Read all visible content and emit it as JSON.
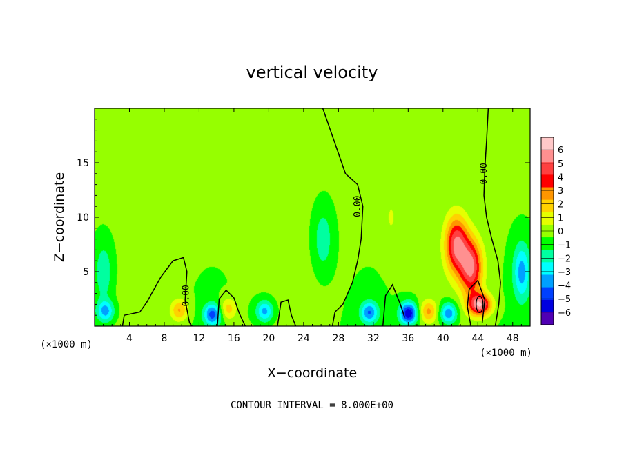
{
  "chart_data": {
    "type": "heatmap",
    "title": "vertical velocity",
    "xlabel": "X−coordinate",
    "ylabel": "Z−coordinate",
    "x_unit": "(×1000 m)",
    "xlim": [
      0,
      50
    ],
    "ylim": [
      0,
      20
    ],
    "x_ticks": [
      4,
      8,
      12,
      16,
      20,
      24,
      28,
      32,
      36,
      40,
      44,
      48
    ],
    "y_ticks": [
      5,
      10,
      15
    ],
    "colorbar": {
      "levels": [
        6,
        5,
        4,
        3,
        2,
        1,
        0,
        -1,
        -2,
        -3,
        -4,
        -5,
        -6
      ],
      "labels": [
        "6",
        "5",
        "4",
        "3",
        "2",
        "1",
        "0",
        "−1",
        "−2",
        "−3",
        "−4",
        "−5",
        "−6"
      ],
      "colors": [
        "#ffc8c8",
        "#ff9090",
        "#ff4040",
        "#ff0000",
        "#ff9600",
        "#ffd200",
        "#e6ff00",
        "#96ff00",
        "#00ff00",
        "#00ffa0",
        "#00ffff",
        "#00a0ff",
        "#0040ff",
        "#0000e0",
        "#5000b4"
      ]
    },
    "contour_label": "0.00",
    "features": [
      {
        "x": 41.5,
        "z": 7.5,
        "w": 6.0
      },
      {
        "x": 43.2,
        "z": 5.4,
        "w": 6.0
      },
      {
        "x": 44.2,
        "z": 2.0,
        "w": 6.5
      },
      {
        "x": 1.2,
        "z": 1.4,
        "w": -3.5
      },
      {
        "x": 13.5,
        "z": 1.1,
        "w": -4.5
      },
      {
        "x": 36.0,
        "z": 1.2,
        "w": -6.0
      },
      {
        "x": 31.5,
        "z": 1.3,
        "w": -4.0
      },
      {
        "x": 40.6,
        "z": 1.2,
        "w": -4.0
      },
      {
        "x": 19.5,
        "z": 1.4,
        "w": -3.5
      },
      {
        "x": 49.0,
        "z": 5.0,
        "w": -3.5
      },
      {
        "x": 1.0,
        "z": 5.0,
        "w": -2.0
      },
      {
        "x": 26.2,
        "z": 8.0,
        "w": -2.0
      },
      {
        "x": 9.7,
        "z": 1.5,
        "w": 3.0
      },
      {
        "x": 15.3,
        "z": 1.6,
        "w": 2.5
      },
      {
        "x": 38.3,
        "z": 1.4,
        "w": 3.0
      },
      {
        "x": 34.0,
        "z": 10.0,
        "w": 1.0
      },
      {
        "x": 43.5,
        "z": 16.0,
        "w": 0.5
      }
    ],
    "annotation": "CONTOUR INTERVAL = 8.000E+00"
  }
}
